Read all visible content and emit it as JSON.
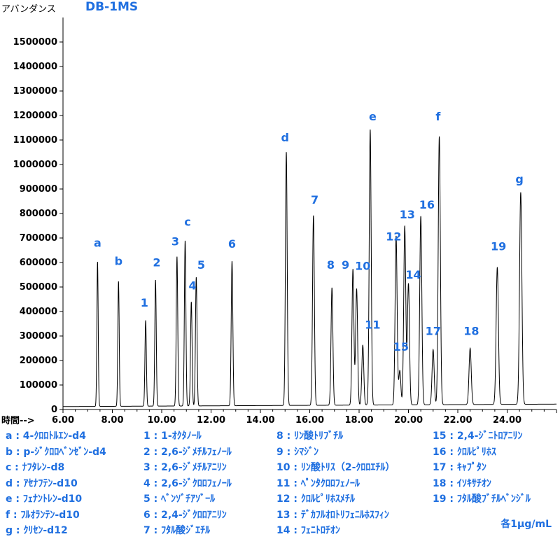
{
  "ylabel": "アバンダンス",
  "title": "DB-1MS",
  "xlabel": "時間-->",
  "concentration_note": "各1μg/mL",
  "chart_data": {
    "type": "line",
    "title": "DB-1MS",
    "xlabel": "時間-->",
    "ylabel": "アバンダンス",
    "xlim": [
      6.0,
      26.0
    ],
    "ylim": [
      0,
      1500000
    ],
    "x_ticks": [
      "6.00",
      "8.00",
      "10.00",
      "12.00",
      "14.00",
      "16.00",
      "18.00",
      "20.00",
      "22.00",
      "24.00"
    ],
    "y_ticks": [
      "0",
      "100000",
      "200000",
      "300000",
      "400000",
      "500000",
      "600000",
      "700000",
      "800000",
      "900000",
      "1000000",
      "1100000",
      "1200000",
      "1300000",
      "1400000",
      "1500000"
    ],
    "peaks": [
      {
        "label": "a",
        "x": 7.4,
        "y": 590000
      },
      {
        "label": "b",
        "x": 8.25,
        "y": 510000
      },
      {
        "label": "1",
        "x": 9.35,
        "y": 350000
      },
      {
        "label": "2",
        "x": 9.75,
        "y": 515000
      },
      {
        "label": "3",
        "x": 10.62,
        "y": 610000
      },
      {
        "label": "c",
        "x": 10.95,
        "y": 675000
      },
      {
        "label": "4",
        "x": 11.2,
        "y": 425000
      },
      {
        "label": "5",
        "x": 11.4,
        "y": 525000
      },
      {
        "label": "6",
        "x": 12.85,
        "y": 590000
      },
      {
        "label": "d",
        "x": 15.05,
        "y": 1035000
      },
      {
        "label": "7",
        "x": 16.15,
        "y": 775000
      },
      {
        "label": "8",
        "x": 16.9,
        "y": 480000
      },
      {
        "label": "9",
        "x": 17.75,
        "y": 555000
      },
      {
        "label": "10",
        "x": 17.9,
        "y": 475000
      },
      {
        "label": "11",
        "x": 18.15,
        "y": 245000
      },
      {
        "label": "e",
        "x": 18.45,
        "y": 1125000
      },
      {
        "label": "12",
        "x": 19.5,
        "y": 690000
      },
      {
        "label": "15",
        "x": 19.65,
        "y": 140000
      },
      {
        "label": "13",
        "x": 19.85,
        "y": 730000
      },
      {
        "label": "14",
        "x": 20.0,
        "y": 495000
      },
      {
        "label": "16",
        "x": 20.5,
        "y": 770000
      },
      {
        "label": "17",
        "x": 21.0,
        "y": 225000
      },
      {
        "label": "f",
        "x": 21.25,
        "y": 1095000
      },
      {
        "label": "18",
        "x": 22.5,
        "y": 230000
      },
      {
        "label": "19",
        "x": 23.6,
        "y": 560000
      },
      {
        "label": "g",
        "x": 24.55,
        "y": 865000
      }
    ],
    "peak_labels": [
      {
        "text": "a",
        "x": 7.4,
        "y": 665000
      },
      {
        "text": "b",
        "x": 8.25,
        "y": 590000
      },
      {
        "text": "1",
        "x": 9.3,
        "y": 420000
      },
      {
        "text": "2",
        "x": 9.8,
        "y": 585000
      },
      {
        "text": "3",
        "x": 10.55,
        "y": 670000
      },
      {
        "text": "c",
        "x": 11.05,
        "y": 750000
      },
      {
        "text": "4",
        "x": 11.25,
        "y": 490000
      },
      {
        "text": "5",
        "x": 11.6,
        "y": 575000
      },
      {
        "text": "6",
        "x": 12.85,
        "y": 660000
      },
      {
        "text": "d",
        "x": 15.0,
        "y": 1095000
      },
      {
        "text": "7",
        "x": 16.2,
        "y": 840000
      },
      {
        "text": "8",
        "x": 16.85,
        "y": 575000
      },
      {
        "text": "9",
        "x": 17.45,
        "y": 575000
      },
      {
        "text": "10",
        "x": 18.15,
        "y": 570000
      },
      {
        "text": "11",
        "x": 18.55,
        "y": 330000
      },
      {
        "text": "e",
        "x": 18.55,
        "y": 1180000
      },
      {
        "text": "12",
        "x": 19.4,
        "y": 690000
      },
      {
        "text": "15",
        "x": 19.7,
        "y": 240000
      },
      {
        "text": "13",
        "x": 19.95,
        "y": 780000
      },
      {
        "text": "14",
        "x": 20.2,
        "y": 535000
      },
      {
        "text": "16",
        "x": 20.75,
        "y": 820000
      },
      {
        "text": "17",
        "x": 21.0,
        "y": 305000
      },
      {
        "text": "f",
        "x": 21.2,
        "y": 1180000
      },
      {
        "text": "18",
        "x": 22.55,
        "y": 305000
      },
      {
        "text": "19",
        "x": 23.65,
        "y": 650000
      },
      {
        "text": "g",
        "x": 24.5,
        "y": 925000
      }
    ]
  },
  "legend": {
    "col1": [
      "a : 4-ｸﾛﾛﾄﾙｴﾝ-d4",
      "b : p-ｼﾞｸﾛﾛﾍﾞﾝｾﾞﾝ-d4",
      "c : ﾅﾌﾀﾚﾝ-d8",
      "d : ｱｾﾅﾌﾃﾝ-d10",
      "e : ﾌｪﾅﾝﾄﾚﾝ-d10",
      "f : ﾌﾙｵﾗﾝﾃﾝ-d10",
      "g : ｸﾘｾﾝ-d12"
    ],
    "col2": [
      "1 : 1-ｵｸﾀﾉｰﾙ",
      "2 : 2,6-ｼﾞﾒﾁﾙﾌｪﾉｰﾙ",
      "3 : 2,6-ｼﾞﾒﾁﾙｱﾆﾘﾝ",
      "4 : 2,6-ｼﾞｸﾛﾛﾌｪﾉｰﾙ",
      "5 : ﾍﾞﾝｿﾞﾁｱｿﾞｰﾙ",
      "6 : 2,4-ｼﾞｸﾛﾛｱﾆﾘﾝ",
      "7 : ﾌﾀﾙ酸ｼﾞｴﾁﾙ"
    ],
    "col3": [
      "8 : ﾘﾝ酸ﾄﾘﾌﾞﾁﾙ",
      "9 : ｼﾏｼﾞﾝ",
      "10 : ﾘﾝ酸ﾄﾘｽ（2-ｸﾛﾛｴﾁﾙ）",
      "11 : ﾍﾟﾝﾀｸﾛﾛﾌｪﾉｰﾙ",
      "12 : ｸﾛﾙﾋﾟﾘﾎｽﾒﾁﾙ",
      "13 : ﾃﾞｶﾌﾙｵﾛﾄﾘﾌｪﾆﾙﾎｽﾌｨﾝ",
      "14 : ﾌｪﾆﾄﾛﾁｵﾝ"
    ],
    "col4": [
      "15 : 2,4-ｼﾞﾆﾄﾛｱﾆﾘﾝ",
      "16 : ｸﾛﾙﾋﾟﾘﾎｽ",
      "17 : ｷｬﾌﾟﾀﾝ",
      "18 : ｲｿｷｻﾁｵﾝ",
      "19 : ﾌﾀﾙ酸ﾌﾞﾁﾙﾍﾞﾝｼﾞﾙ"
    ]
  }
}
